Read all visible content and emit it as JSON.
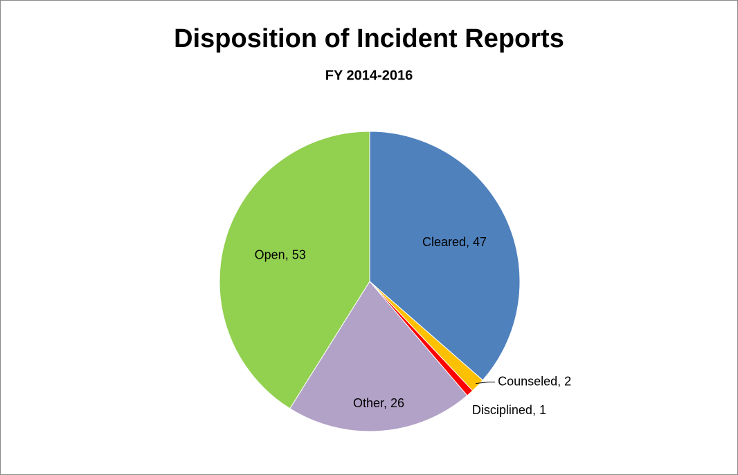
{
  "chart_data": {
    "type": "pie",
    "title": "Disposition of Incident Reports",
    "subtitle": "FY 2014-2016",
    "categories": [
      "Cleared",
      "Counseled",
      "Disciplined",
      "Other",
      "Open"
    ],
    "values": [
      47,
      2,
      1,
      26,
      53
    ],
    "value_labels": [
      "Cleared, 47",
      "Counseled, 2",
      "Disciplined, 1",
      "Other, 26",
      "Open, 53"
    ],
    "colors": [
      "#4f81bd",
      "#ffc000",
      "#ff0000",
      "#b2a2c7",
      "#92d050"
    ]
  }
}
